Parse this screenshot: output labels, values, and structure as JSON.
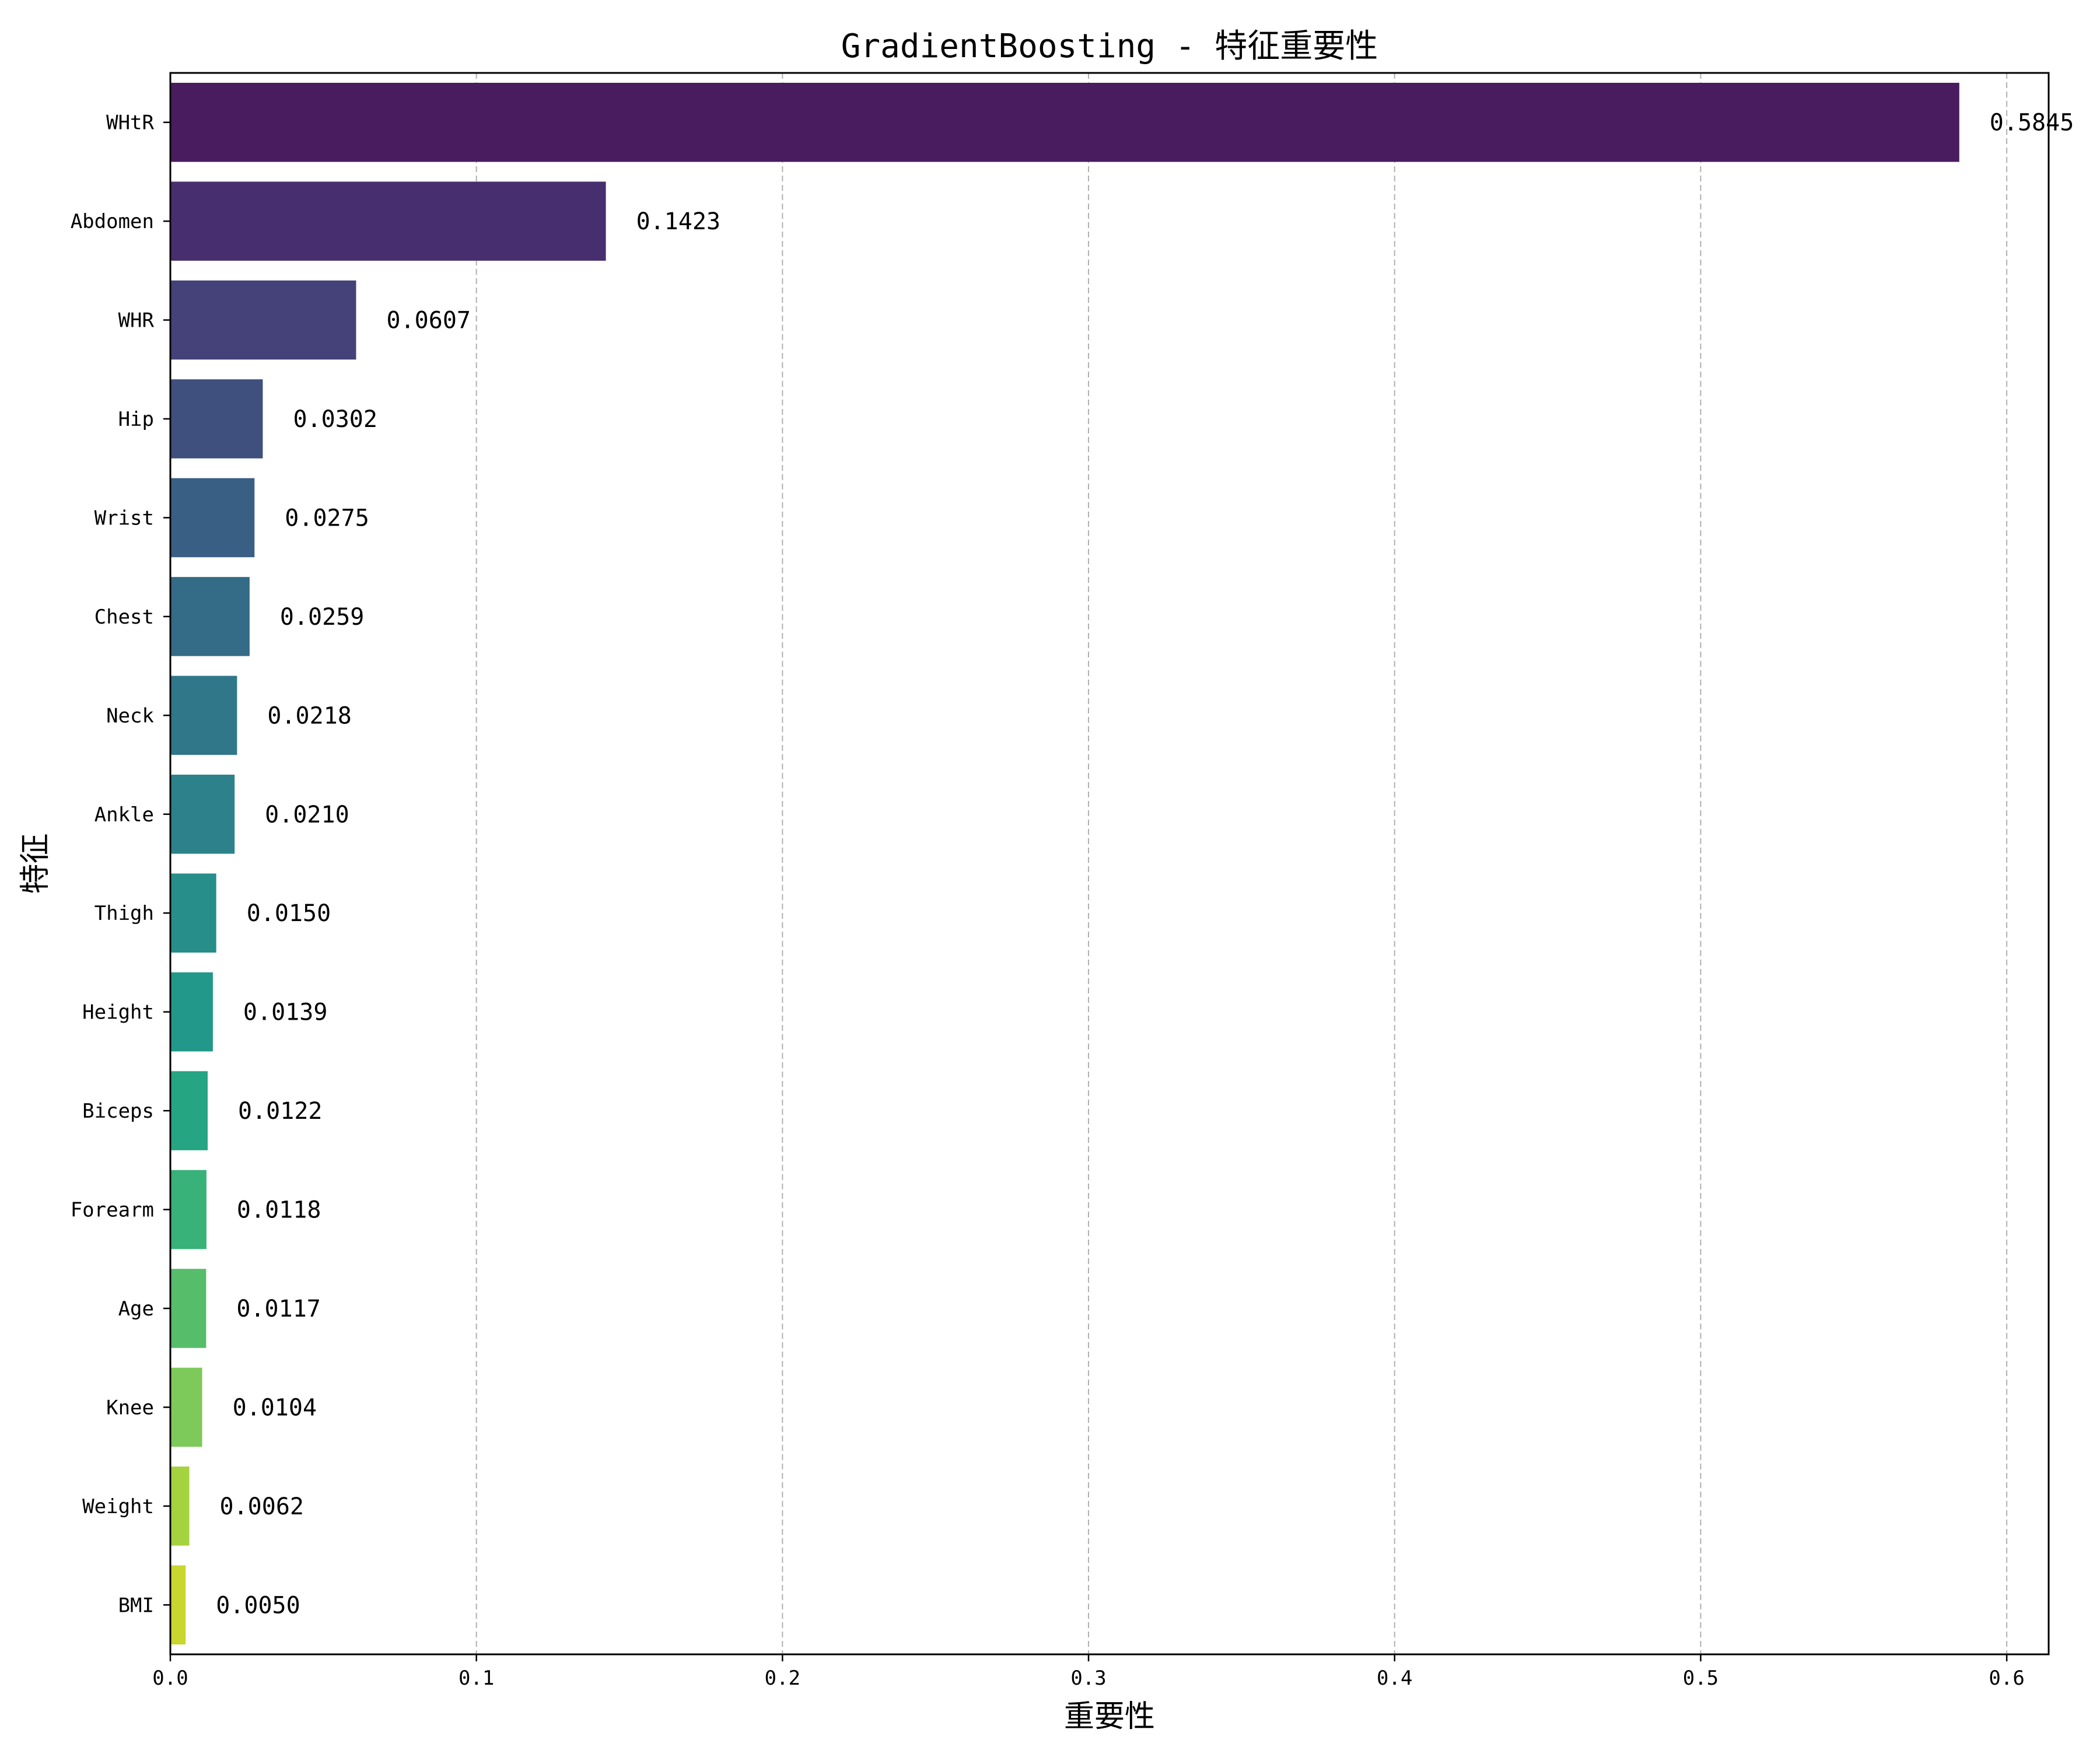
{
  "chart_data": {
    "type": "bar",
    "orientation": "horizontal",
    "title": "GradientBoosting - 特征重要性",
    "xlabel": "重要性",
    "ylabel": "特征",
    "xlim": [
      0,
      0.6137
    ],
    "xticks": [
      "0.0",
      "0.1",
      "0.2",
      "0.3",
      "0.4",
      "0.5",
      "0.6"
    ],
    "grid": {
      "x": true,
      "y": false,
      "style": "dashed"
    },
    "categories": [
      "WHtR",
      "Abdomen",
      "WHR",
      "Hip",
      "Wrist",
      "Chest",
      "Neck",
      "Ankle",
      "Thigh",
      "Height",
      "Biceps",
      "Forearm",
      "Age",
      "Knee",
      "Weight",
      "BMI"
    ],
    "values": [
      0.5845,
      0.1423,
      0.0607,
      0.0302,
      0.0275,
      0.0259,
      0.0218,
      0.021,
      0.015,
      0.0139,
      0.0122,
      0.0118,
      0.0117,
      0.0104,
      0.0062,
      0.005
    ],
    "value_labels": [
      "0.5845",
      "0.1423",
      "0.0607",
      "0.0302",
      "0.0275",
      "0.0259",
      "0.0218",
      "0.0210",
      "0.0150",
      "0.0139",
      "0.0122",
      "0.0118",
      "0.0117",
      "0.0104",
      "0.0062",
      "0.0050"
    ],
    "colors": [
      "#481c5e",
      "#472f6f",
      "#444279",
      "#3f507e",
      "#395f84",
      "#346b87",
      "#30778a",
      "#2d818b",
      "#288e8a",
      "#22988a",
      "#26a583",
      "#38b278",
      "#56bd6b",
      "#7dc95a",
      "#a5d23f",
      "#c8d62e"
    ]
  }
}
